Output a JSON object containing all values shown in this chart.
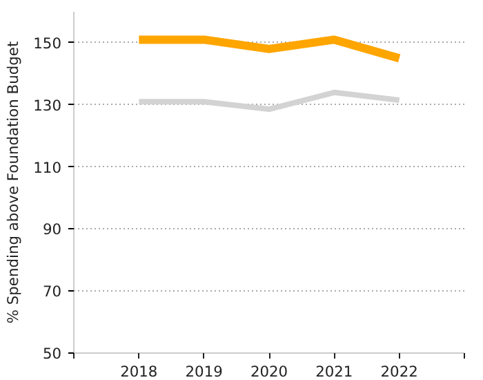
{
  "chart_data": {
    "type": "line",
    "ylabel": "% Spending above Foundation Budget",
    "x": [
      2018,
      2019,
      2020,
      2021,
      2022
    ],
    "series": [
      {
        "color": "#ffa500",
        "values": [
          151,
          151,
          148,
          151,
          145
        ]
      },
      {
        "color": "#d3d3d3",
        "values": [
          131,
          131,
          128.6,
          134,
          131.5
        ]
      }
    ],
    "xlim": [
      2017,
      2023
    ],
    "xticks": [
      {
        "value": 2017,
        "label": null
      },
      2018,
      2019,
      2020,
      2021,
      2022,
      {
        "value": 2023,
        "label": null
      }
    ],
    "ylim": [
      50,
      160
    ],
    "yticks": [
      50,
      70,
      90,
      110,
      130,
      150
    ],
    "grid": "y",
    "marker": "none",
    "line_style": "solid"
  }
}
